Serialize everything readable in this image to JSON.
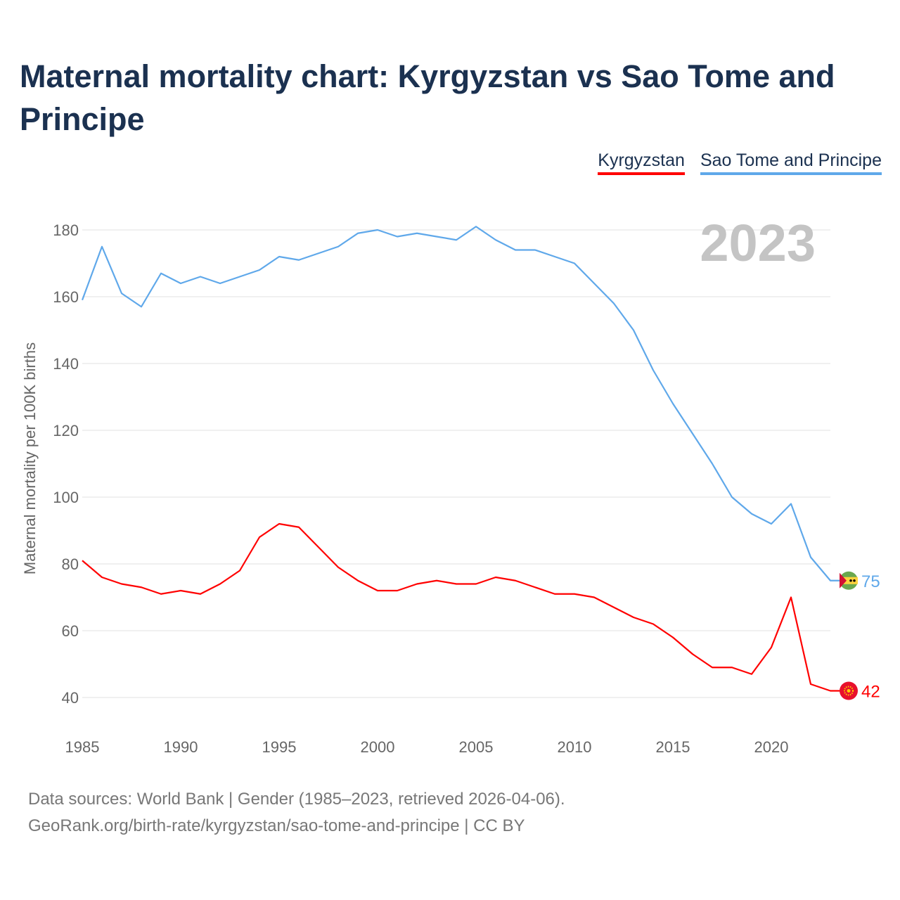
{
  "title": "Maternal mortality chart: Kyrgyzstan vs Sao Tome and Principe",
  "footer": {
    "line1": "Data sources: World Bank | Gender (1985–2023, retrieved 2026-04-06).",
    "line2": "GeoRank.org/birth-rate/kyrgyzstan/sao-tome-and-principe | CC BY"
  },
  "chart_data": {
    "type": "line",
    "title": "Maternal mortality chart: Kyrgyzstan vs Sao Tome and Principe",
    "xlabel": "",
    "ylabel": "Maternal mortality per 100K births",
    "year_label": "2023",
    "xlim": [
      1985,
      2023
    ],
    "ylim": [
      40,
      180
    ],
    "xticks": [
      "1985",
      "1990",
      "1995",
      "2000",
      "2005",
      "2010",
      "2015",
      "2020"
    ],
    "yticks": [
      "40",
      "60",
      "80",
      "100",
      "120",
      "140",
      "160",
      "180"
    ],
    "grid": true,
    "legend_position": "top-right",
    "x": [
      1985,
      1986,
      1987,
      1988,
      1989,
      1990,
      1991,
      1992,
      1993,
      1994,
      1995,
      1996,
      1997,
      1998,
      1999,
      2000,
      2001,
      2002,
      2003,
      2004,
      2005,
      2006,
      2007,
      2008,
      2009,
      2010,
      2011,
      2012,
      2013,
      2014,
      2015,
      2016,
      2017,
      2018,
      2019,
      2020,
      2021,
      2022,
      2023
    ],
    "series": [
      {
        "name": "Kyrgyzstan",
        "color": "#ff0000",
        "end_label": "42",
        "flag": "kyrgyzstan-flag",
        "values": [
          81,
          76,
          74,
          73,
          71,
          72,
          71,
          74,
          78,
          88,
          92,
          91,
          85,
          79,
          75,
          72,
          72,
          74,
          75,
          74,
          74,
          76,
          75,
          73,
          71,
          71,
          70,
          67,
          64,
          62,
          58,
          53,
          49,
          49,
          47,
          55,
          70,
          44,
          42
        ]
      },
      {
        "name": "Sao Tome and Principe",
        "color": "#5fa8ea",
        "end_label": "75",
        "flag": "sao-tome-flag",
        "values": [
          159,
          175,
          161,
          157,
          167,
          164,
          166,
          164,
          166,
          168,
          172,
          171,
          173,
          175,
          179,
          180,
          178,
          179,
          178,
          177,
          181,
          177,
          174,
          174,
          172,
          170,
          164,
          158,
          150,
          138,
          128,
          119,
          110,
          100,
          95,
          92,
          98,
          82,
          75
        ]
      }
    ]
  }
}
